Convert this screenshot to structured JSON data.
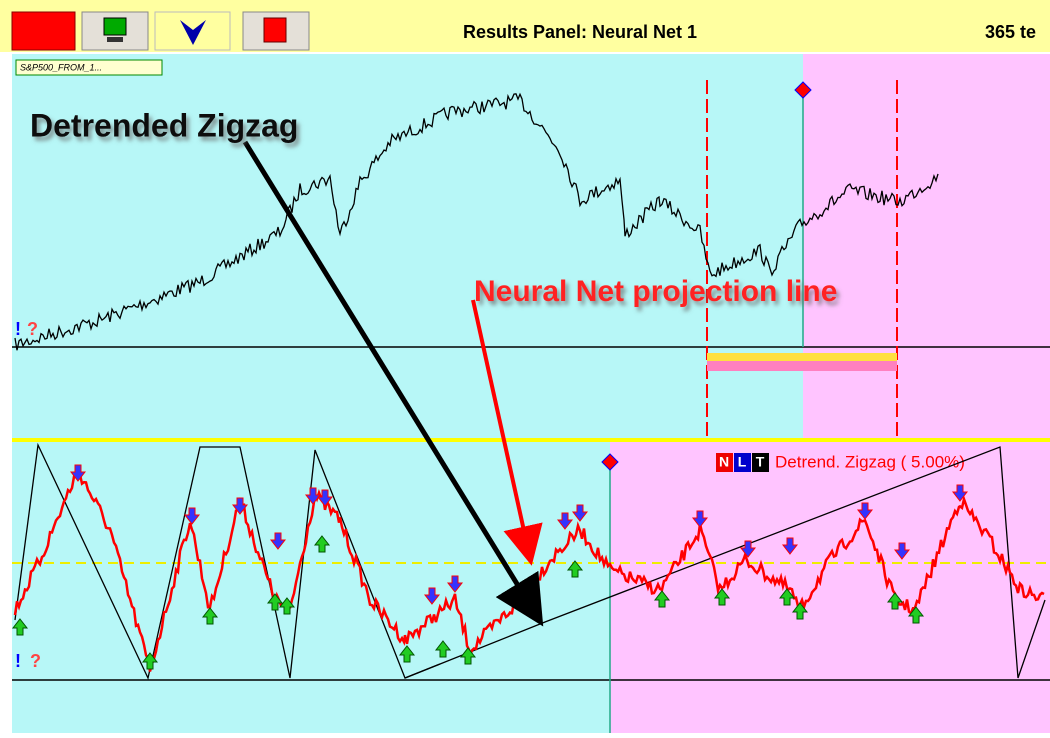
{
  "toolbar": {
    "title": "Results Panel: Neural Net  1",
    "right_text": "365 te"
  },
  "upper_panel": {
    "series_tag": "S&P500_FROM_1...",
    "markers": [
      "!",
      "?"
    ]
  },
  "lower_panel": {
    "legend_buttons": [
      "N",
      "L",
      "T"
    ],
    "indicator_label": "Detrend. Zigzag ( 5.00%)",
    "markers": [
      "!",
      "?"
    ]
  },
  "annotations": {
    "zigzag_label": "Detrended Zigzag",
    "projection_label": "Neural Net projection line"
  }
}
